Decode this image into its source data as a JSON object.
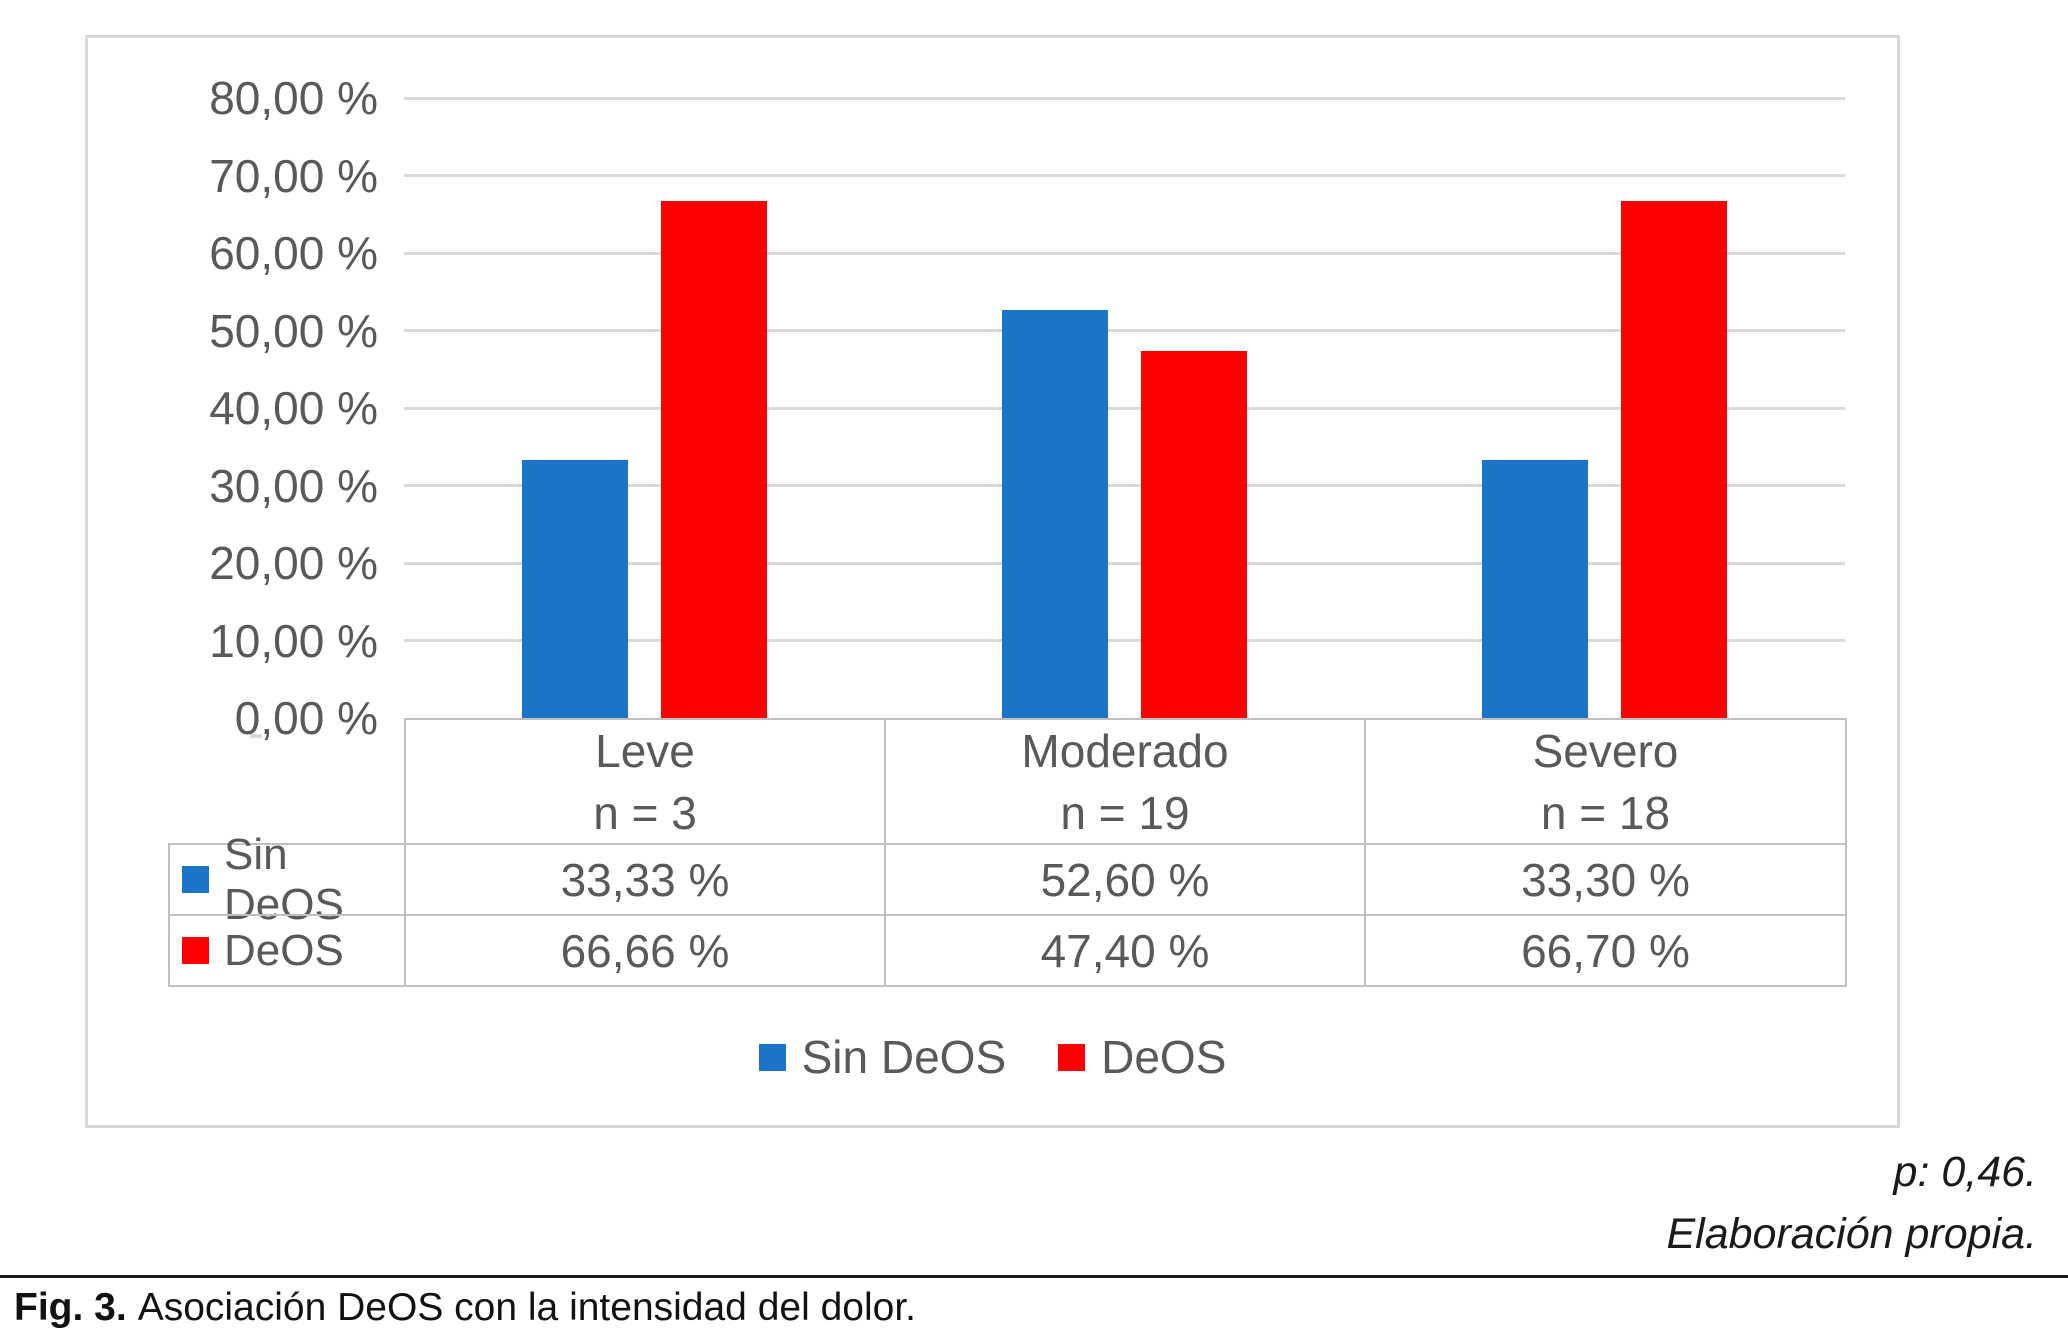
{
  "chart_data": {
    "type": "bar",
    "title": "",
    "categories": [
      "Leve",
      "Moderado",
      "Severo"
    ],
    "category_sublabels": [
      "n = 3",
      "n = 19",
      "n = 18"
    ],
    "series": [
      {
        "name": "Sin DeOS",
        "color": "#1B74C9",
        "values": [
          33.33,
          52.6,
          33.3
        ],
        "labels": [
          "33,33 %",
          "52,60 %",
          "33,30 %"
        ]
      },
      {
        "name": "DeOS",
        "color": "#FE0000",
        "values": [
          66.66,
          47.4,
          66.7
        ],
        "labels": [
          "66,66 %",
          "47,40 %",
          "66,70 %"
        ]
      }
    ],
    "ylim": [
      0,
      80
    ],
    "ytick_step": 10,
    "yticks": [
      "80,00 %",
      "70,00 %",
      "60,00 %",
      "50,00 %",
      "40,00 %",
      "30,00 %",
      "20,00 %",
      "10,00 %",
      "0,00 %"
    ],
    "grid": true,
    "legend_position": "bottom",
    "data_table_shown": true
  },
  "colors": {
    "series_blue": "#1B74C9",
    "series_red": "#FE0000",
    "chart_text": "#595959",
    "gridline": "#D9D9D9",
    "table_border": "#BFBFBF",
    "frame_border": "#D9D9D9"
  },
  "notes": {
    "p_value": "p: 0,46.",
    "source": "Elaboración propia."
  },
  "caption": {
    "label": "Fig. 3.",
    "text": "Asociación DeOS con la intensidad del dolor."
  }
}
